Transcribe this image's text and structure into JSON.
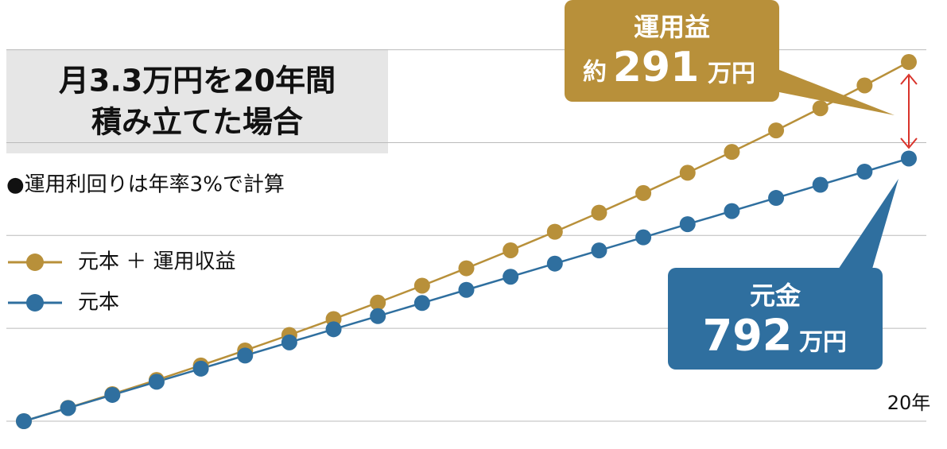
{
  "chart_data": {
    "type": "line",
    "title_lines": [
      "月3.3万円を20年間",
      "積み立てた場合"
    ],
    "note": "●運用利回りは年率3%で計算",
    "categories": [
      null,
      null,
      null,
      null,
      null,
      null,
      null,
      null,
      null,
      null,
      null,
      null,
      null,
      null,
      null,
      null,
      null,
      null,
      null,
      null,
      "20年"
    ],
    "series": [
      {
        "name": "元本 ＋ 運用収益",
        "color": "#b8903a",
        "values": [
          0,
          40.2,
          81.5,
          124.2,
          168.1,
          213.3,
          260,
          308,
          357.6,
          408.6,
          461.1,
          515.3,
          571.2,
          628.7,
          687.9,
          749,
          812,
          876.8,
          943.6,
          1012.5,
          1083
        ]
      },
      {
        "name": "元本",
        "color": "#2f6f9f",
        "values": [
          0,
          39.6,
          79.2,
          118.8,
          158.4,
          198,
          237.6,
          277.2,
          316.8,
          356.4,
          396,
          435.6,
          475.2,
          514.8,
          554.4,
          594,
          633.6,
          673.2,
          712.8,
          752.4,
          792
        ]
      }
    ],
    "annotations": [
      {
        "label": "運用益",
        "prefix": "約",
        "value": 291,
        "unit": "万円"
      },
      {
        "label": "元金",
        "value": 792,
        "unit": "万円"
      }
    ],
    "ylim": [
      0,
      1270
    ],
    "yticks": [
      0,
      280,
      560,
      840,
      1120
    ],
    "grid": true
  }
}
